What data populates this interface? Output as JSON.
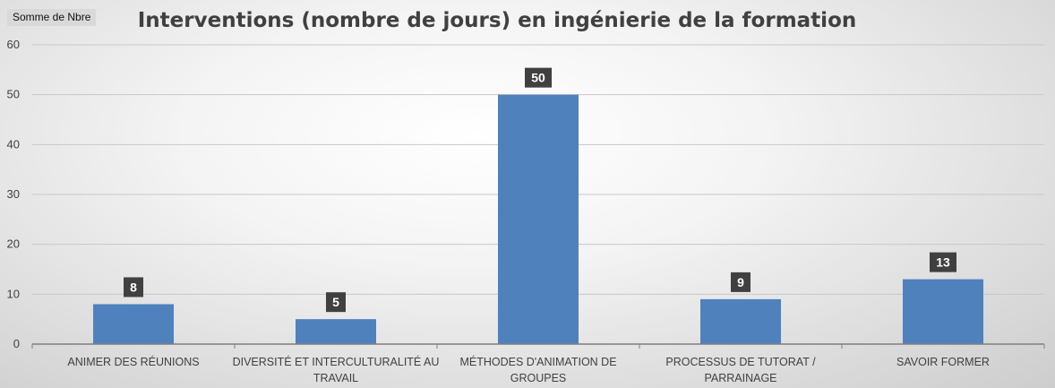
{
  "chart_data": {
    "type": "bar",
    "title": "Interventions (nombre de jours) en ingénierie de la formation",
    "field_button": "Somme de Nbre",
    "categories": [
      [
        "ANIMER DES RÉUNIONS"
      ],
      [
        "DIVERSITÉ ET INTERCULTURALITÉ AU",
        "TRAVAIL"
      ],
      [
        "MÉTHODES D'ANIMATION DE",
        "GROUPES"
      ],
      [
        "PROCESSUS DE TUTORAT /",
        "PARRAINAGE"
      ],
      [
        "SAVOIR FORMER"
      ]
    ],
    "values": [
      8,
      5,
      50,
      9,
      13
    ],
    "ylim": [
      0,
      60
    ],
    "yticks": [
      0,
      10,
      20,
      30,
      40,
      50,
      60
    ],
    "grid": true,
    "bar_color": "#4f81bd",
    "label_bg_color": "#404040"
  }
}
